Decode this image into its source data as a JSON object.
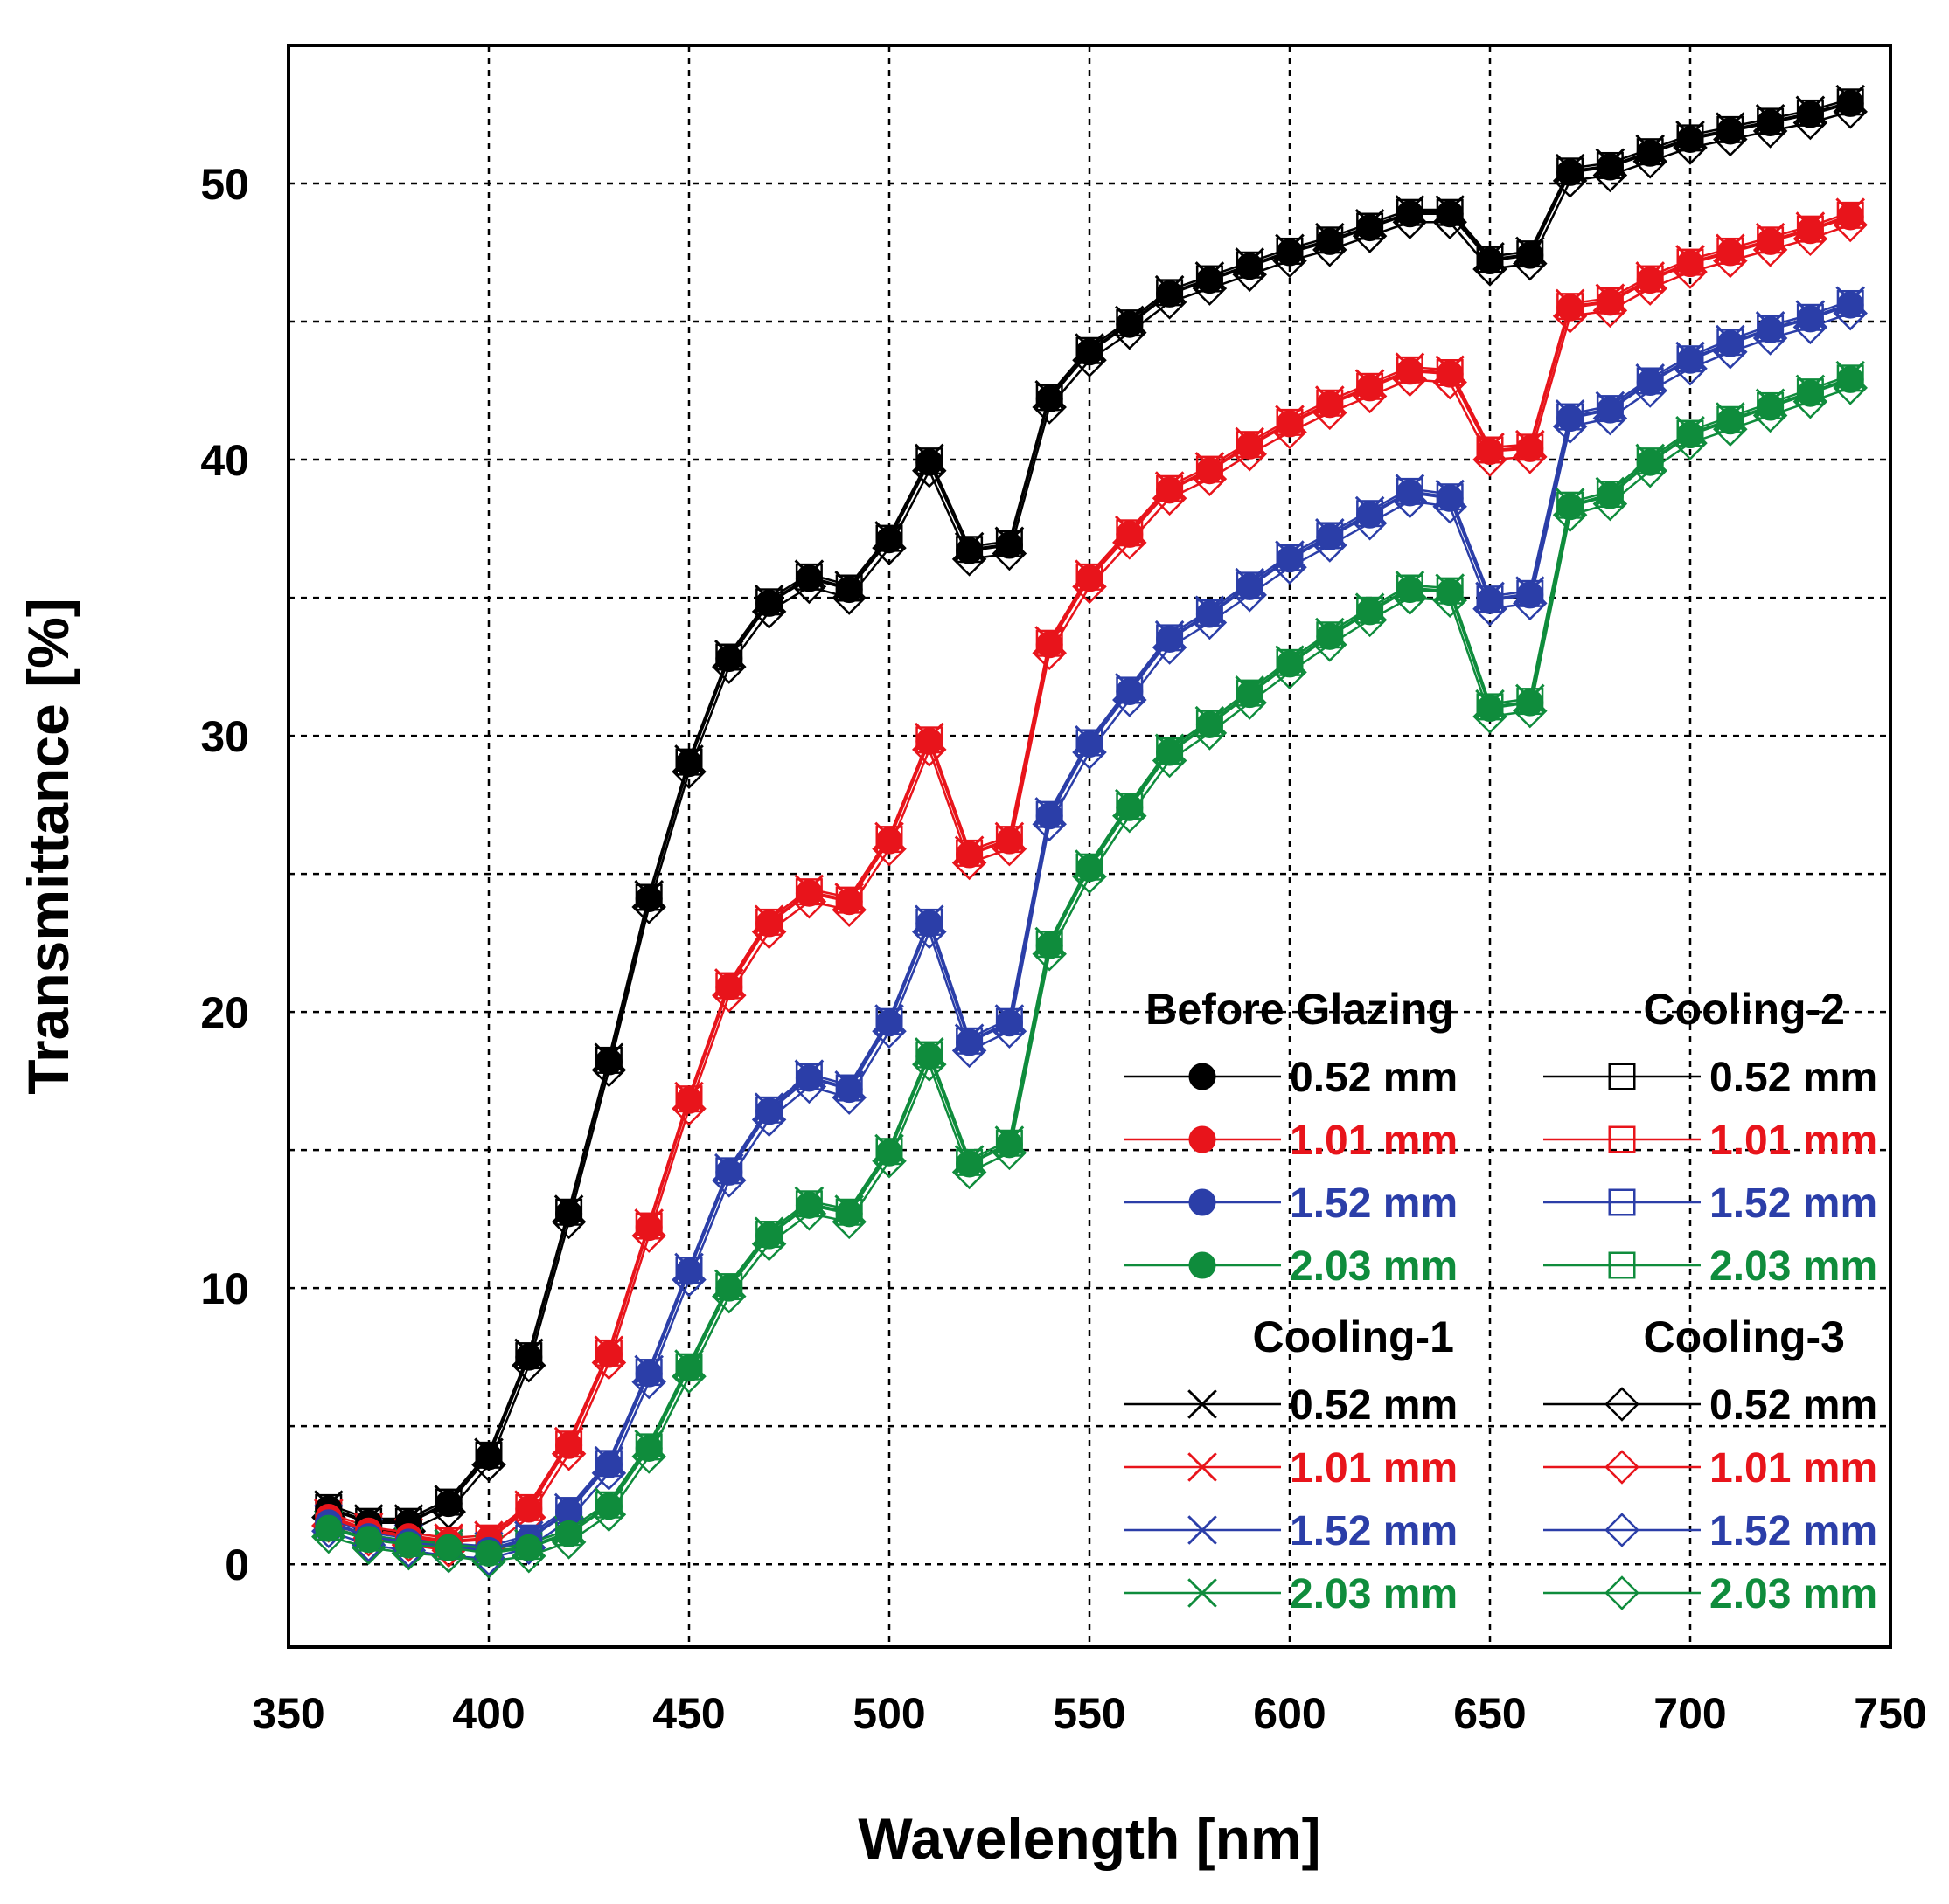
{
  "chart_data": {
    "type": "line",
    "xlabel": "Wavelength [nm]",
    "ylabel": "Transmittance [%]",
    "xlim": [
      350,
      750
    ],
    "ylim": [
      -3,
      55
    ],
    "x_ticks": [
      350,
      400,
      450,
      500,
      550,
      600,
      650,
      700,
      750
    ],
    "y_ticks": [
      0,
      10,
      20,
      30,
      40,
      50
    ],
    "y_gridlines": [
      0,
      5,
      10,
      15,
      20,
      25,
      30,
      35,
      40,
      45,
      50
    ],
    "grid": true,
    "colors": {
      "0.52 mm": "#000000",
      "1.01 mm": "#e8141b",
      "1.52 mm": "#2b3ea8",
      "2.03 mm": "#0f8c3c"
    },
    "x": [
      360,
      370,
      380,
      390,
      400,
      410,
      420,
      430,
      440,
      450,
      460,
      470,
      480,
      490,
      500,
      510,
      520,
      530,
      540,
      550,
      560,
      570,
      580,
      590,
      600,
      610,
      620,
      630,
      640,
      650,
      660,
      670,
      680,
      690,
      700,
      710,
      720,
      730,
      740
    ],
    "base_curves": {
      "0.52 mm": [
        2.0,
        1.5,
        1.5,
        2.2,
        3.9,
        7.5,
        12.7,
        18.2,
        24.1,
        29.0,
        32.8,
        34.8,
        35.7,
        35.3,
        37.1,
        39.9,
        36.7,
        36.9,
        42.2,
        43.9,
        44.9,
        46.0,
        46.5,
        47.0,
        47.5,
        47.9,
        48.4,
        48.9,
        48.9,
        47.2,
        47.4,
        50.4,
        50.6,
        51.1,
        51.6,
        51.9,
        52.2,
        52.5,
        52.9
      ],
      "1.01 mm": [
        1.7,
        1.2,
        1.0,
        0.8,
        0.9,
        2.0,
        4.3,
        7.6,
        12.2,
        16.8,
        20.9,
        23.2,
        24.3,
        24.0,
        26.2,
        29.8,
        25.7,
        26.2,
        33.3,
        35.7,
        37.3,
        38.9,
        39.6,
        40.5,
        41.3,
        42.0,
        42.6,
        43.2,
        43.1,
        40.3,
        40.4,
        45.5,
        45.7,
        46.5,
        47.1,
        47.5,
        47.9,
        48.3,
        48.8
      ],
      "1.52 mm": [
        1.5,
        1.0,
        0.8,
        0.6,
        0.5,
        0.9,
        1.9,
        3.6,
        6.9,
        10.6,
        14.2,
        16.4,
        17.6,
        17.2,
        19.6,
        23.2,
        18.9,
        19.6,
        27.1,
        29.7,
        31.6,
        33.5,
        34.4,
        35.4,
        36.4,
        37.2,
        38.0,
        38.8,
        38.6,
        34.9,
        35.1,
        41.5,
        41.8,
        42.8,
        43.6,
        44.2,
        44.7,
        45.1,
        45.6
      ],
      "2.03 mm": [
        1.3,
        0.9,
        0.7,
        0.6,
        0.4,
        0.6,
        1.1,
        2.1,
        4.2,
        7.1,
        10.0,
        11.9,
        13.0,
        12.7,
        14.9,
        18.4,
        14.5,
        15.2,
        22.4,
        25.2,
        27.4,
        29.4,
        30.4,
        31.5,
        32.6,
        33.6,
        34.5,
        35.3,
        35.2,
        31.0,
        31.2,
        38.3,
        38.7,
        39.9,
        40.9,
        41.4,
        41.9,
        42.4,
        42.9
      ]
    },
    "conditions": [
      {
        "name": "Before Glazing",
        "marker": "filled-circle",
        "offset": 0.0
      },
      {
        "name": "Cooling-1",
        "marker": "x",
        "offset": 0.15
      },
      {
        "name": "Cooling-2",
        "marker": "open-square",
        "offset": 0.05
      },
      {
        "name": "Cooling-3",
        "marker": "open-diamond",
        "offset": -0.3
      }
    ],
    "legend": {
      "placement": "lower-right",
      "groups": [
        {
          "title": "Before Glazing",
          "marker": "filled-circle",
          "entries": [
            "0.52 mm",
            "1.01 mm",
            "1.52 mm",
            "2.03 mm"
          ]
        },
        {
          "title": "Cooling-2",
          "marker": "open-square",
          "entries": [
            "0.52 mm",
            "1.01 mm",
            "1.52 mm",
            "2.03 mm"
          ]
        },
        {
          "title": "Cooling-1",
          "marker": "x",
          "entries": [
            "0.52 mm",
            "1.01 mm",
            "1.52 mm",
            "2.03 mm"
          ]
        },
        {
          "title": "Cooling-3",
          "marker": "open-diamond",
          "entries": [
            "0.52 mm",
            "1.01 mm",
            "1.52 mm",
            "2.03 mm"
          ]
        }
      ]
    }
  }
}
